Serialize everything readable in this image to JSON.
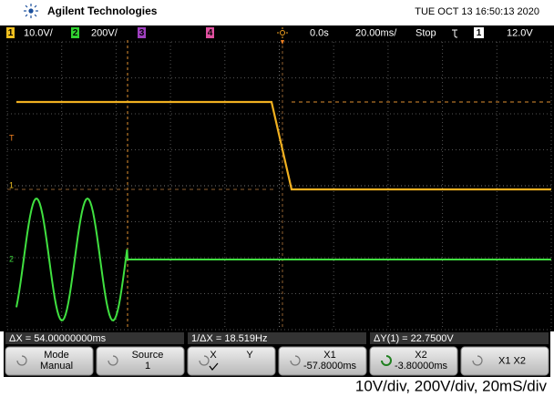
{
  "header": {
    "brand": "Agilent Technologies",
    "timestamp": "TUE OCT 13 16:50:13 2020"
  },
  "status": {
    "channels": [
      {
        "number": "1",
        "scale": "10.0V/"
      },
      {
        "number": "2",
        "scale": "200V/"
      },
      {
        "number": "3"
      },
      {
        "number": "4"
      }
    ],
    "delay": "0.0s",
    "timebase": "20.00ms/",
    "run_state": "Stop",
    "trigger_channel": "1",
    "trigger_level": "12.0V"
  },
  "markers": {
    "trigger": "T",
    "ch1": "1",
    "ch2": "2"
  },
  "measurements": [
    "ΔX = 54.00000000ms",
    "1/ΔX = 18.519Hz",
    "ΔY(1) = 22.7500V"
  ],
  "softkeys": [
    {
      "lines": [
        "Mode",
        "Manual"
      ]
    },
    {
      "lines": [
        "Source",
        "1"
      ]
    },
    {
      "lines": [
        "X",
        "Y"
      ]
    },
    {
      "lines": [
        "X1",
        "-57.8000ms"
      ]
    },
    {
      "lines": [
        "X2",
        "-3.80000ms"
      ]
    },
    {
      "lines": [
        "X1 X2"
      ]
    }
  ],
  "caption": "10V/div, 200V/div, 20mS/div"
}
